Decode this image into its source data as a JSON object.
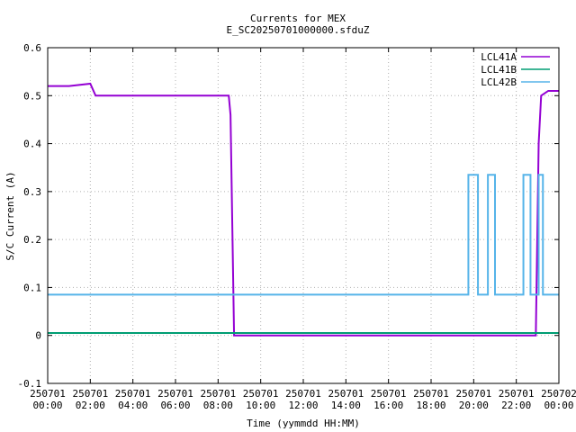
{
  "chart_data": {
    "type": "line",
    "title": "Currents for MEX",
    "subtitle": "E_SC20250701000000.sfduZ",
    "xlabel": "Time (yymmdd HH:MM)",
    "ylabel": "S/C Current (A)",
    "x_ticks": [
      {
        "date": "250701",
        "time": "00:00"
      },
      {
        "date": "250701",
        "time": "02:00"
      },
      {
        "date": "250701",
        "time": "04:00"
      },
      {
        "date": "250701",
        "time": "06:00"
      },
      {
        "date": "250701",
        "time": "08:00"
      },
      {
        "date": "250701",
        "time": "10:00"
      },
      {
        "date": "250701",
        "time": "12:00"
      },
      {
        "date": "250701",
        "time": "14:00"
      },
      {
        "date": "250701",
        "time": "16:00"
      },
      {
        "date": "250701",
        "time": "18:00"
      },
      {
        "date": "250701",
        "time": "20:00"
      },
      {
        "date": "250701",
        "time": "22:00"
      },
      {
        "date": "250702",
        "time": "00:00"
      }
    ],
    "y_ticks": [
      "-0.1",
      "0",
      "0.1",
      "0.2",
      "0.3",
      "0.4",
      "0.5",
      "0.6"
    ],
    "xlim": [
      "2025-07-01 00:00",
      "2025-07-02 00:00"
    ],
    "ylim": [
      -0.1,
      0.6
    ],
    "grid": true,
    "legend_position": "top-right",
    "series": [
      {
        "name": "LCL41A",
        "color": "#9400d3",
        "points": [
          [
            "2025-07-01 00:00",
            0.52
          ],
          [
            "2025-07-01 01:00",
            0.52
          ],
          [
            "2025-07-01 02:00",
            0.525
          ],
          [
            "2025-07-01 02:15",
            0.5
          ],
          [
            "2025-07-01 03:00",
            0.5
          ],
          [
            "2025-07-01 04:00",
            0.5
          ],
          [
            "2025-07-01 05:00",
            0.5
          ],
          [
            "2025-07-01 06:00",
            0.5
          ],
          [
            "2025-07-01 07:00",
            0.5
          ],
          [
            "2025-07-01 08:00",
            0.5
          ],
          [
            "2025-07-01 08:30",
            0.5
          ],
          [
            "2025-07-01 08:35",
            0.46
          ],
          [
            "2025-07-01 08:45",
            0.0
          ],
          [
            "2025-07-01 12:00",
            0.0
          ],
          [
            "2025-07-01 16:00",
            0.0
          ],
          [
            "2025-07-01 20:00",
            0.0
          ],
          [
            "2025-07-01 22:55",
            0.0
          ],
          [
            "2025-07-01 23:03",
            0.4
          ],
          [
            "2025-07-01 23:10",
            0.5
          ],
          [
            "2025-07-01 23:30",
            0.51
          ],
          [
            "2025-07-02 00:00",
            0.51
          ]
        ]
      },
      {
        "name": "LCL41B",
        "color": "#009e73",
        "points": [
          [
            "2025-07-01 00:00",
            0.005
          ],
          [
            "2025-07-01 06:00",
            0.005
          ],
          [
            "2025-07-01 12:00",
            0.005
          ],
          [
            "2025-07-01 18:00",
            0.005
          ],
          [
            "2025-07-02 00:00",
            0.005
          ]
        ]
      },
      {
        "name": "LCL42B",
        "color": "#56b4e9",
        "points": [
          [
            "2025-07-01 00:00",
            0.085
          ],
          [
            "2025-07-01 19:45",
            0.085
          ],
          [
            "2025-07-01 19:45",
            0.335
          ],
          [
            "2025-07-01 20:12",
            0.335
          ],
          [
            "2025-07-01 20:12",
            0.085
          ],
          [
            "2025-07-01 20:40",
            0.085
          ],
          [
            "2025-07-01 20:40",
            0.335
          ],
          [
            "2025-07-01 21:00",
            0.335
          ],
          [
            "2025-07-01 21:00",
            0.085
          ],
          [
            "2025-07-01 22:20",
            0.085
          ],
          [
            "2025-07-01 22:20",
            0.335
          ],
          [
            "2025-07-01 22:40",
            0.335
          ],
          [
            "2025-07-01 22:40",
            0.085
          ],
          [
            "2025-07-01 23:03",
            0.085
          ],
          [
            "2025-07-01 23:03",
            0.335
          ],
          [
            "2025-07-01 23:15",
            0.335
          ],
          [
            "2025-07-01 23:15",
            0.085
          ],
          [
            "2025-07-02 00:00",
            0.085
          ]
        ]
      }
    ]
  }
}
